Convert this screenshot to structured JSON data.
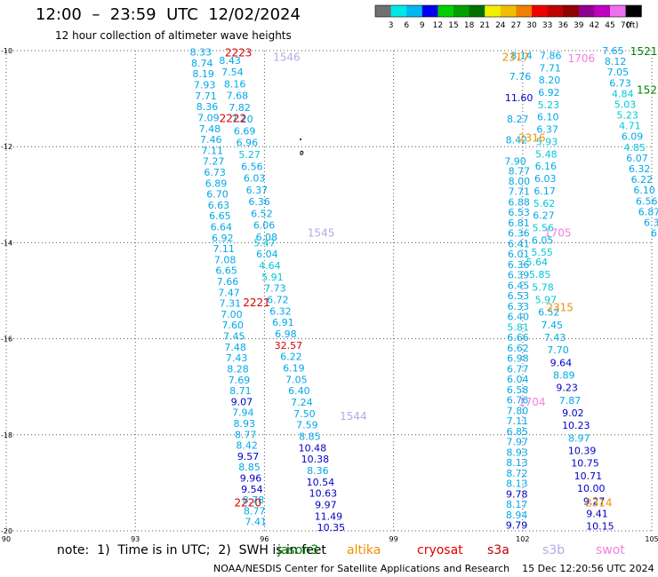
{
  "title": "12:00  –  23:59  UTC  12/02/2024",
  "subtitle": "12 hour collection of altimeter wave heights",
  "colorbar": {
    "colors": [
      "#707070",
      "#00e8e8",
      "#00b8f0",
      "#0000f0",
      "#00d000",
      "#00a000",
      "#007000",
      "#f0f000",
      "#f0c000",
      "#f08000",
      "#f00000",
      "#c00000",
      "#900000",
      "#900090",
      "#c000c0",
      "#f070f0",
      "#000000"
    ],
    "labels": [
      "3",
      "6",
      "9",
      "12",
      "15",
      "18",
      "21",
      "24",
      "27",
      "30",
      "33",
      "36",
      "39",
      "42",
      "45",
      "70"
    ],
    "unit": "(ft)"
  },
  "axes": {
    "xticks": [
      {
        "v": 90,
        "l": "90"
      },
      {
        "v": 93,
        "l": "93"
      },
      {
        "v": 96,
        "l": "96"
      },
      {
        "v": 99,
        "l": "99"
      },
      {
        "v": 102,
        "l": "102"
      },
      {
        "v": 105,
        "l": "105"
      }
    ],
    "yticks": [
      {
        "v": -10,
        "l": "-10"
      },
      {
        "v": -12,
        "l": "-12"
      },
      {
        "v": -14,
        "l": "-14"
      },
      {
        "v": -16,
        "l": "-16"
      },
      {
        "v": -18,
        "l": "-18"
      },
      {
        "v": -20,
        "l": "-20"
      }
    ],
    "xlim": [
      90,
      105
    ],
    "ylim": [
      -20,
      -10
    ]
  },
  "chart_data": {
    "type": "scatter",
    "xlim": [
      90,
      105
    ],
    "ylim": [
      -20,
      -10
    ],
    "color_by_value": [
      {
        "max": 6,
        "color": "#00c8d8"
      },
      {
        "max": 9,
        "color": "#00a8e8"
      },
      {
        "max": 12,
        "color": "#0000c8"
      },
      {
        "max": 99,
        "color": "#d00000"
      }
    ],
    "tracks": [
      {
        "x0": 94.52,
        "y0": -10.03,
        "x1": 95.8,
        "y1": -19.81,
        "values": [
          "8.33",
          "8.74",
          "8.19",
          "7.93",
          "7.71",
          "8.36",
          "7.09",
          "7.48",
          "7.46",
          "7.11",
          "7.27",
          "6.73",
          "6.89",
          "6.70",
          "6.63",
          "6.65",
          "6.64",
          "6.92",
          "7.11",
          "7.08",
          "6.65",
          "7.66",
          "7.47",
          "7.31",
          "7.00",
          "7.60",
          "7.45",
          "7.48",
          "7.43",
          "8.28",
          "7.69",
          "8.71",
          "9.07",
          "7.94",
          "8.93",
          "8.77",
          "8.42",
          "9.57",
          "8.85",
          "9.96",
          "9.54",
          "8.78",
          "8.77",
          "7.41"
        ]
      },
      {
        "x0": 95.2,
        "y0": -10.2,
        "x1": 96.05,
        "y1": -13.88,
        "values": [
          "8.43",
          "7.54",
          "8.16",
          "7.68",
          "7.82",
          "7.20",
          "6.69",
          "6.96",
          "5.27",
          "6.56",
          "6.03",
          "6.37",
          "6.36",
          "6.52",
          "6.06",
          "6.08"
        ]
      },
      {
        "x0": 96.0,
        "y0": -14.0,
        "x1": 97.55,
        "y1": -19.93,
        "values": [
          "5.47",
          "6.04",
          "4.64",
          "5.91",
          "7.73",
          "6.72",
          "6.32",
          "6.91",
          "6.98",
          "32.57",
          "6.22",
          "6.19",
          "7.05",
          "6.40",
          "7.24",
          "7.50",
          "7.59",
          "8.85",
          "10.48",
          "10.38",
          "8.36",
          "10.54",
          "10.63",
          "9.97",
          "11.49",
          "10.35"
        ]
      },
      {
        "x0": 101.97,
        "y0": -10.1,
        "x1": 101.83,
        "y1": -12.3,
        "values": [
          "8.14",
          "7.76",
          "11.60",
          "8.27",
          "8.42",
          "7.90"
        ]
      },
      {
        "x0": 101.92,
        "y0": -12.5,
        "x1": 101.86,
        "y1": -19.88,
        "values": [
          "8.77",
          "8.00",
          "7.71",
          "6.88",
          "6.53",
          "6.81",
          "6.36",
          "6.41",
          "6.01",
          "6.36",
          "6.39",
          "6.45",
          "6.53",
          "6.33",
          "6.40",
          "5.81",
          "6.66",
          "6.62",
          "6.98",
          "6.77",
          "6.04",
          "6.58",
          "6.76",
          "7.80",
          "7.11",
          "6.85",
          "7.97",
          "8.93",
          "8.13",
          "8.72",
          "8.13",
          "9.78",
          "8.17",
          "8.94",
          "9.79"
        ]
      },
      {
        "x0": 102.65,
        "y0": -10.1,
        "x1": 102.45,
        "y1": -14.2,
        "values": [
          "7.86",
          "7.71",
          "8.20",
          "6.92",
          "5.23",
          "6.10",
          "6.37",
          "5.93",
          "5.48",
          "6.16",
          "6.03",
          "6.17",
          "5.62",
          "6.27",
          "5.56",
          "6.05",
          "5.55"
        ]
      },
      {
        "x0": 102.33,
        "y0": -14.4,
        "x1": 103.8,
        "y1": -19.9,
        "values": [
          "5.64",
          "5.85",
          "5.78",
          "5.97",
          "6.52",
          "7.45",
          "7.43",
          "7.70",
          "9.64",
          "8.89",
          "9.23",
          "7.87",
          "9.02",
          "10.23",
          "8.97",
          "10.39",
          "10.75",
          "10.71",
          "10.00",
          "9.27",
          "9.41",
          "10.15"
        ]
      },
      {
        "x0": 104.1,
        "y0": -10.0,
        "x1": 105.05,
        "y1": -13.8,
        "values": [
          "7.65",
          "8.12",
          "7.05",
          "6.73",
          "4.84",
          "5.03",
          "5.23",
          "4.71",
          "6.09",
          "4.85",
          "6.07",
          "6.32",
          "6.22",
          "6.10",
          "6.56",
          "6.87",
          "6.3",
          "6"
        ]
      }
    ],
    "labels": [
      {
        "x": 95.08,
        "y": -10.03,
        "text": "2223",
        "color": "#d00000"
      },
      {
        "x": 96.2,
        "y": -10.12,
        "text": "1546",
        "color": "#b8a8e8"
      },
      {
        "x": 94.95,
        "y": -11.4,
        "text": "2222",
        "color": "#d00000"
      },
      {
        "x": 97.0,
        "y": -13.78,
        "text": "1545",
        "color": "#b8a8e8"
      },
      {
        "x": 95.5,
        "y": -15.23,
        "text": "2221",
        "color": "#d00000"
      },
      {
        "x": 97.75,
        "y": -17.6,
        "text": "1544",
        "color": "#b8a8e8"
      },
      {
        "x": 95.3,
        "y": -19.4,
        "text": "2220",
        "color": "#d00000"
      },
      {
        "x": 101.52,
        "y": -10.12,
        "text": "2317",
        "color": "#f09000"
      },
      {
        "x": 103.05,
        "y": -10.15,
        "text": "1706",
        "color": "#f080e0"
      },
      {
        "x": 104.5,
        "y": -10.0,
        "text": "1521",
        "color": "#008000"
      },
      {
        "x": 104.65,
        "y": -10.8,
        "text": "152",
        "color": "#008000"
      },
      {
        "x": 101.9,
        "y": -11.8,
        "text": "2316",
        "color": "#f09000"
      },
      {
        "x": 102.5,
        "y": -13.78,
        "text": "1705",
        "color": "#f080e0"
      },
      {
        "x": 102.55,
        "y": -15.33,
        "text": "2315",
        "color": "#f09000"
      },
      {
        "x": 101.9,
        "y": -17.3,
        "text": "1704",
        "color": "#f080e0"
      },
      {
        "x": 103.45,
        "y": -19.4,
        "text": "2314",
        "color": "#f09000"
      }
    ]
  },
  "note": {
    "prefix": "note:  1)  Time is in UTC;  2)  SWH is in feet",
    "items": [
      {
        "text": "jason3",
        "color": "#008000"
      },
      {
        "text": "altika",
        "color": "#f09000"
      },
      {
        "text": "cryosat",
        "color": "#e00000"
      },
      {
        "text": "s3a",
        "color": "#c00000"
      },
      {
        "text": "s3b",
        "color": "#b8a8e8"
      },
      {
        "text": "swot",
        "color": "#f080e0"
      }
    ]
  },
  "footer": "NOAA/NESDIS Center for Satellite Applications and Research    15 Dec 12:20:56 UTC 2024"
}
